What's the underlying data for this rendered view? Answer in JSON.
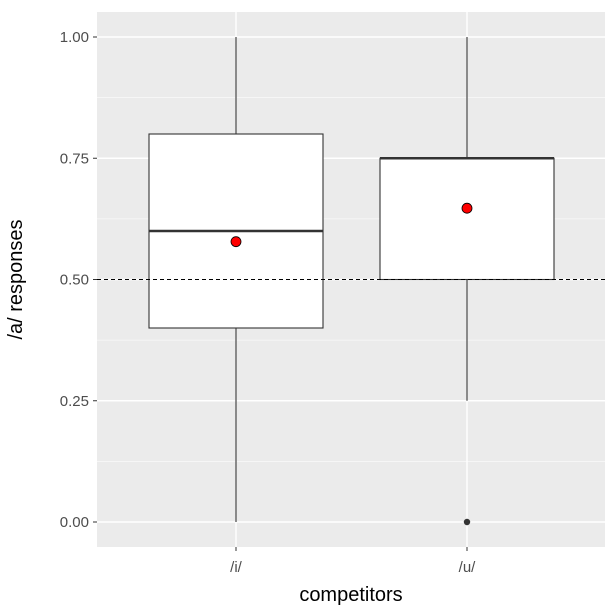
{
  "chart_data": {
    "type": "boxplot",
    "xlabel": "competitors",
    "ylabel": "/a/ responses",
    "categories": [
      "/i/",
      "/u/"
    ],
    "ylim": [
      -0.05,
      1.05
    ],
    "yticks": [
      0,
      0.25,
      0.5,
      0.75,
      1.0
    ],
    "ytick_labels": [
      "0.00",
      "0.25",
      "0.50",
      "0.75",
      "1.00"
    ],
    "boxes": [
      {
        "category": "/i/",
        "min": 0.0,
        "q1": 0.4,
        "median": 0.6,
        "q3": 0.8,
        "max": 1.0,
        "mean": 0.578,
        "outliers": []
      },
      {
        "category": "/u/",
        "min": 0.25,
        "q1": 0.5,
        "median": 0.75,
        "q3": 0.75,
        "max": 1.0,
        "mean": 0.647,
        "outliers": [
          0.0
        ]
      }
    ],
    "reference_line": {
      "y": 0.5,
      "style": "dashed"
    },
    "grid": true,
    "legend": "none",
    "colors": {
      "panel_background": "#ebebeb",
      "grid_major": "#ffffff",
      "box_fill": "#ffffff",
      "box_line": "#333333",
      "mean_point": "#ff0000",
      "outlier_point": "#333333"
    }
  }
}
